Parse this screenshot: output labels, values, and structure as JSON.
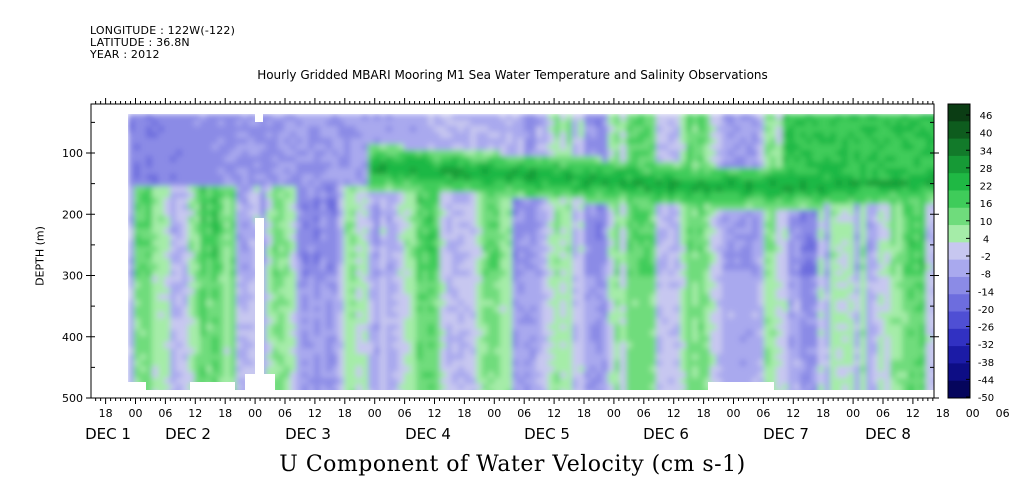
{
  "header": {
    "longitude": "LONGITUDE : 122W(-122)",
    "latitude": "LATITUDE : 36.8N",
    "year": "YEAR : 2012"
  },
  "chart_data": {
    "type": "heatmap",
    "title": "Hourly Gridded MBARI Mooring M1 Sea Water Temperature and Salinity Observations",
    "bottom_title": "U Component of Water Velocity (cm s-1)",
    "ylabel": "DEPTH (m)",
    "xlabel": "",
    "y_range": [
      500,
      20
    ],
    "y_ticks": [
      100,
      200,
      300,
      400,
      500
    ],
    "time_range_hours": [
      "DEC 1 00 (minus 10h)",
      "DEC 8 16h"
    ],
    "hour_tick_labels": [
      "18",
      "00",
      "06",
      "12",
      "18",
      "00",
      "06",
      "12",
      "18",
      "00",
      "06",
      "12",
      "18",
      "00",
      "06",
      "12",
      "18",
      "00",
      "06",
      "12",
      "18",
      "00",
      "06",
      "12",
      "18",
      "00",
      "06",
      "12",
      "18",
      "00",
      "06",
      "12"
    ],
    "day_labels": [
      "DEC 1",
      "DEC 2",
      "DEC 3",
      "DEC 4",
      "DEC 5",
      "DEC 6",
      "DEC 7",
      "DEC 8"
    ],
    "colorbar": {
      "labels": [
        "46",
        "40",
        "34",
        "28",
        "22",
        "16",
        "10",
        "4",
        "-2",
        "-8",
        "-14",
        "-20",
        "-26",
        "-32",
        "-38",
        "-44",
        "-50"
      ],
      "min": -50,
      "max": 46
    },
    "pattern": {
      "description_note": "",
      "green_band_depth_m": [
        100,
        170
      ],
      "blue_surface_days": [
        1,
        2.5
      ]
    }
  }
}
